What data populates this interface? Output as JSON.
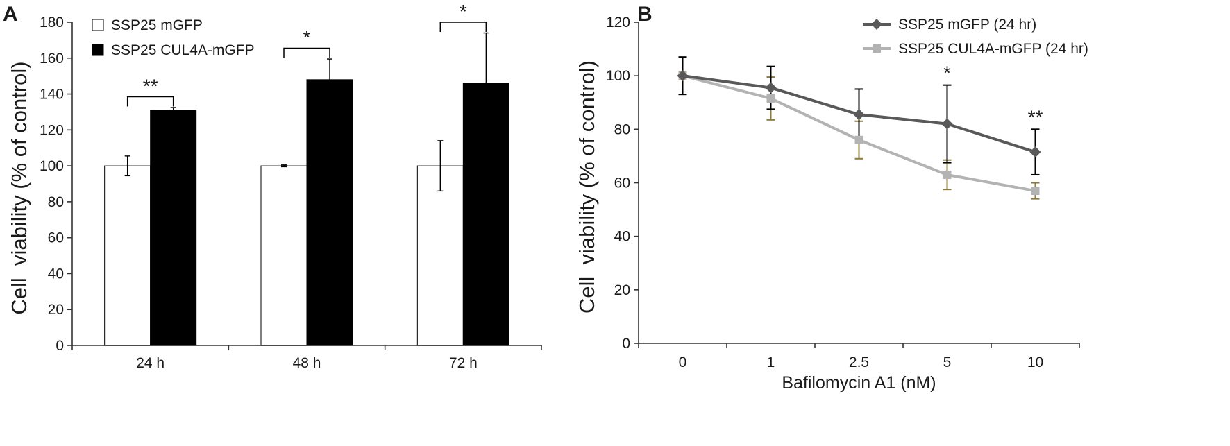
{
  "figure": {
    "panel_a_label": "A",
    "panel_b_label": "B"
  },
  "chart_data": [
    {
      "type": "bar",
      "panel": "A",
      "title": "",
      "xlabel": "",
      "ylabel": "Cell  viability (% of control)",
      "ylim": [
        0,
        180
      ],
      "yticks": [
        0,
        20,
        40,
        60,
        80,
        100,
        120,
        140,
        160,
        180
      ],
      "categories": [
        "24 h",
        "48 h",
        "72 h"
      ],
      "series": [
        {
          "name": "SSP25 mGFP",
          "color": "#ffffff",
          "values": [
            100,
            100,
            100
          ],
          "errors": [
            5.5,
            0.5,
            14
          ]
        },
        {
          "name": "SSP25 CUL4A-mGFP",
          "color": "#000000",
          "values": [
            131,
            148,
            146
          ],
          "errors": [
            1.5,
            11.5,
            28
          ]
        }
      ],
      "significance": [
        "**",
        "*",
        "*"
      ],
      "legend": "top-left",
      "grid": false
    },
    {
      "type": "line",
      "panel": "B",
      "title": "",
      "xlabel": "Bafilomycin A1 (nM)",
      "ylabel": "Cell  viability (% of control)",
      "ylim": [
        0,
        120
      ],
      "yticks": [
        0,
        20,
        40,
        60,
        80,
        100,
        120
      ],
      "x": [
        "0",
        "1",
        "2.5",
        "5",
        "10"
      ],
      "series": [
        {
          "name": "SSP25 mGFP (24 hr)",
          "color": "#595959",
          "marker": "diamond",
          "values": [
            100,
            95.5,
            85.5,
            82,
            71.5
          ],
          "errors": [
            7,
            8,
            9.5,
            14.5,
            8.5
          ]
        },
        {
          "name": "SSP25 CUL4A-mGFP (24 hr)",
          "color": "#b3b3b3",
          "marker": "square",
          "values": [
            100,
            91.5,
            76,
            63,
            57
          ],
          "errors": [
            1.5,
            8,
            7,
            5.5,
            3
          ]
        }
      ],
      "significance": [
        "",
        "",
        "",
        "*",
        "**"
      ],
      "legend": "top-right",
      "grid": false
    }
  ]
}
